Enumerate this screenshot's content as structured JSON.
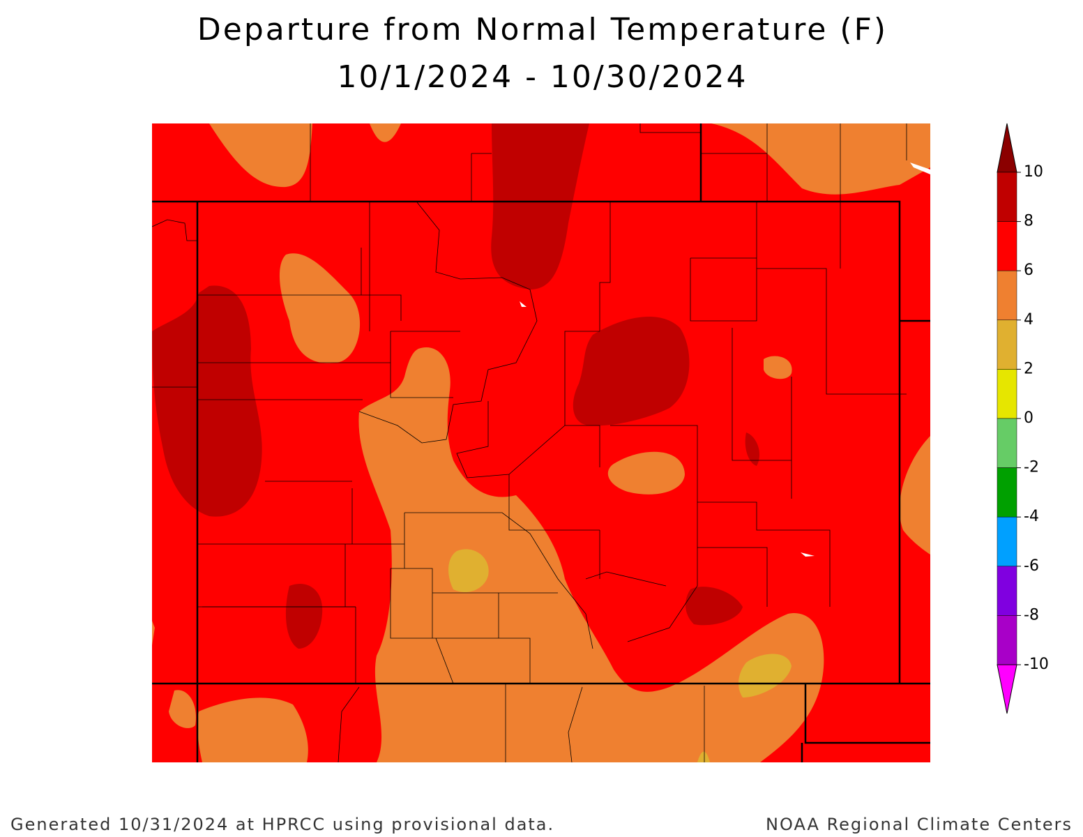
{
  "header": {
    "title": "Departure from Normal Temperature (F)",
    "subtitle": "10/1/2024 - 10/30/2024"
  },
  "legend": {
    "ticks": [
      10,
      8,
      6,
      4,
      2,
      0,
      -2,
      -4,
      -6,
      -8,
      -10
    ],
    "colors": [
      "#8b0000",
      "#c00000",
      "#ff0000",
      "#ef8030",
      "#e0b030",
      "#e6e600",
      "#66cc66",
      "#00a000",
      "#00a0ff",
      "#8000e0",
      "#a800c8",
      "#ff00ff"
    ]
  },
  "footer": {
    "left": "Generated 10/31/2024 at HPRCC using provisional data.",
    "right": "NOAA Regional Climate Centers"
  }
}
